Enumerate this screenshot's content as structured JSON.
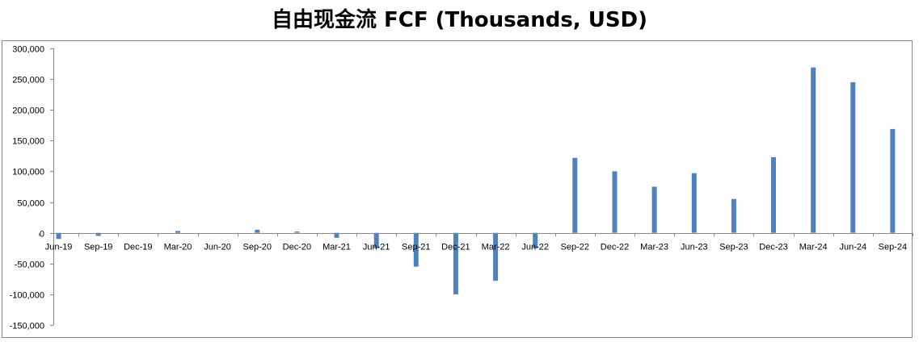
{
  "chart_data": {
    "type": "bar",
    "title": "自由现金流 FCF (Thousands, USD)",
    "xlabel": "",
    "ylabel": "",
    "ylim": [
      -150000,
      300000
    ],
    "yticks": [
      300000,
      250000,
      200000,
      150000,
      100000,
      50000,
      0,
      -50000,
      -100000,
      -150000
    ],
    "ytick_labels": [
      "300,000",
      "250,000",
      "200,000",
      "150,000",
      "100,000",
      "50,000",
      "0",
      "-50,000",
      "-100,000",
      "-150,000"
    ],
    "categories": [
      "Jun-19",
      "Sep-19",
      "Dec-19",
      "Mar-20",
      "Jun-20",
      "Sep-20",
      "Dec-20",
      "Mar-21",
      "Jun-21",
      "Sep-21",
      "Dec-21",
      "Mar-22",
      "Jun-22",
      "Sep-22",
      "Dec-22",
      "Mar-23",
      "Jun-23",
      "Sep-23",
      "Dec-23",
      "Mar-24",
      "Jun-24",
      "Sep-24"
    ],
    "values": [
      -10000,
      -5000,
      0,
      3000,
      0,
      5000,
      2000,
      -8000,
      -25000,
      -55000,
      -100000,
      -78000,
      -25000,
      122000,
      100000,
      75000,
      97000,
      55000,
      123000,
      269000,
      245000,
      169000
    ],
    "bar_color": "#4f81bd",
    "grid": false,
    "legend": "none"
  }
}
